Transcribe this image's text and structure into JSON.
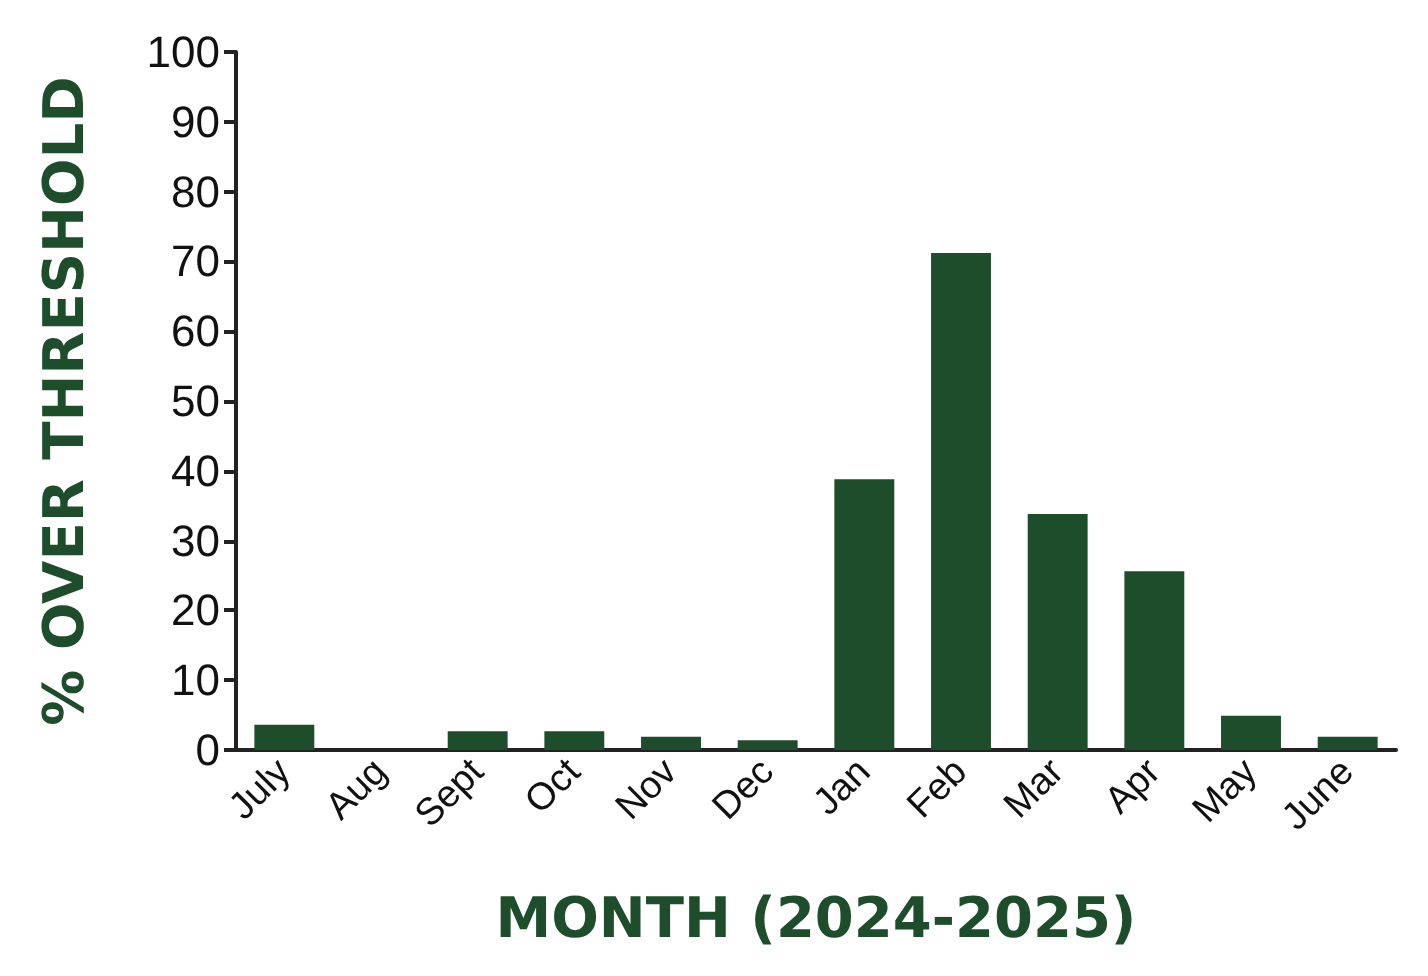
{
  "chart_data": {
    "type": "bar",
    "xlabel": "MONTH (2024-2025)",
    "ylabel": "% OVER THRESHOLD",
    "categories": [
      "July",
      "Aug",
      "Sept",
      "Oct",
      "Nov",
      "Dec",
      "Jan",
      "Feb",
      "Mar",
      "Apr",
      "May",
      "June"
    ],
    "values": [
      3.6,
      0,
      2.7,
      2.7,
      1.9,
      1.4,
      38.8,
      71.2,
      33.8,
      25.6,
      4.9,
      1.9
    ],
    "color": "#1e4d2b",
    "ylim": [
      0,
      100
    ],
    "yticks": [
      0,
      10,
      20,
      30,
      40,
      50,
      60,
      70,
      80,
      90,
      100
    ],
    "grid": false
  }
}
